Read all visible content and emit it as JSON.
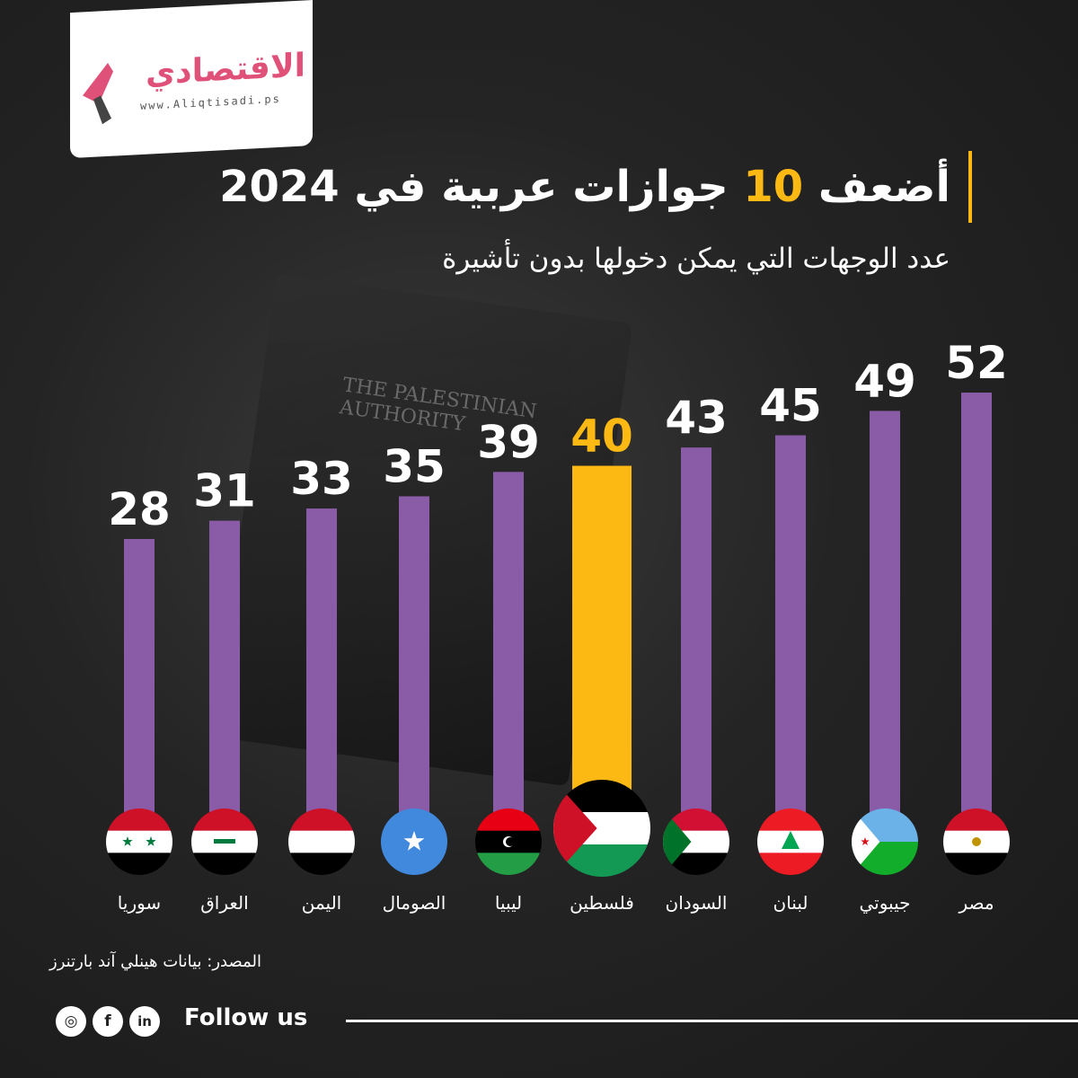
{
  "logo": {
    "text": "الاقتصادي",
    "url": "www.Aliqtisadi.ps"
  },
  "title": {
    "pre": "أضعف",
    "number": "10",
    "post": "جوازات عربية في 2024"
  },
  "subtitle": "عدد الوجهات التي يمكن دخولها بدون تأشيرة",
  "passport_text": "THE PALESTINIAN AUTHORITY",
  "source": "المصدر: بيانات هينلي آند بارتنرز",
  "follow": "Follow us",
  "social": [
    "instagram",
    "facebook",
    "linkedin"
  ],
  "colors": {
    "bar": "#8a5ca8",
    "highlight": "#fdb913",
    "brand": "#e0517a"
  },
  "chart_data": {
    "type": "bar",
    "title": "أضعف 10 جوازات عربية في 2024",
    "ylabel": "عدد الوجهات التي يمكن دخولها بدون تأشيرة",
    "categories": [
      "سوريا",
      "العراق",
      "اليمن",
      "الصومال",
      "ليبيا",
      "فلسطين",
      "السودان",
      "لبنان",
      "جيبوتي",
      "مصر"
    ],
    "values": [
      28,
      31,
      33,
      35,
      39,
      40,
      43,
      45,
      49,
      52
    ],
    "flags": [
      "syria",
      "iraq",
      "yemen",
      "somalia",
      "libya",
      "palestine",
      "sudan",
      "lebanon",
      "djibouti",
      "egypt"
    ],
    "highlight": "فلسطين"
  }
}
